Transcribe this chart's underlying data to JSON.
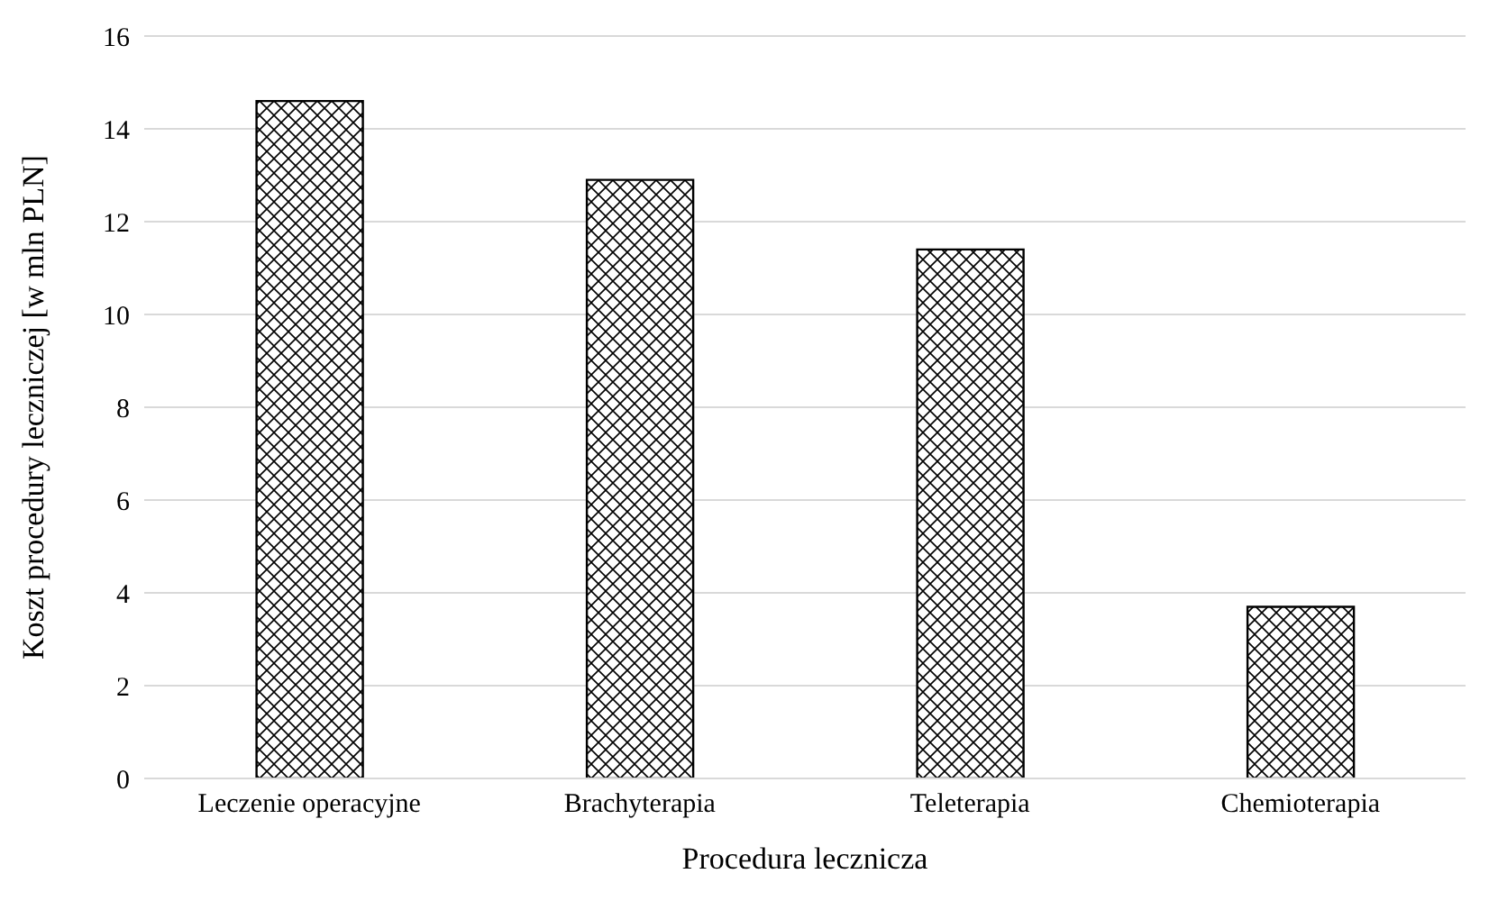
{
  "chart_data": {
    "type": "bar",
    "xlabel": "Procedura lecznicza",
    "ylabel": "Koszt procedury leczniczej [w mln PLN]",
    "categories": [
      "Leczenie operacyjne",
      "Brachyterapia",
      "Teleterapia",
      "Chemioterapia"
    ],
    "values": [
      14.6,
      12.9,
      11.4,
      3.7
    ],
    "color": "#000000",
    "ylim": [
      0,
      16
    ],
    "yticks": [
      0,
      2,
      4,
      6,
      8,
      10,
      12,
      14,
      16
    ],
    "grid": "y"
  }
}
